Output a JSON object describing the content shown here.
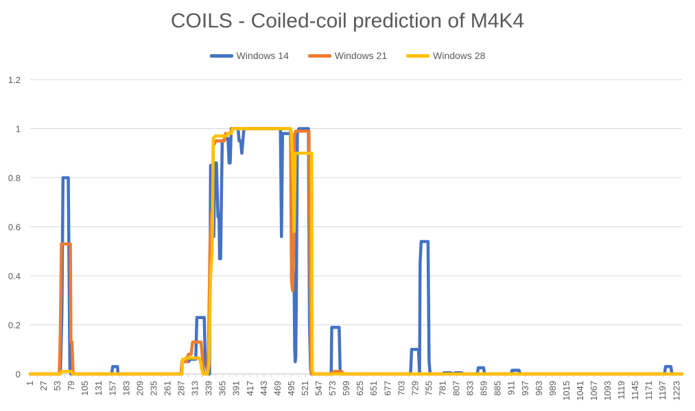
{
  "chart_data": {
    "type": "line",
    "title": "COILS - Coiled-coil prediction of M4K4",
    "xlabel": "",
    "ylabel": "",
    "ylim": [
      0,
      1.2
    ],
    "yticks": [
      "0",
      "0.2",
      "0.4",
      "0.6",
      "0.8",
      "1",
      "1.2"
    ],
    "xlim": [
      1,
      1233
    ],
    "xticks": [
      "1",
      "27",
      "53",
      "79",
      "105",
      "131",
      "157",
      "183",
      "209",
      "235",
      "261",
      "287",
      "313",
      "339",
      "365",
      "391",
      "417",
      "443",
      "469",
      "495",
      "521",
      "547",
      "573",
      "599",
      "625",
      "651",
      "677",
      "703",
      "729",
      "755",
      "781",
      "807",
      "833",
      "859",
      "885",
      "911",
      "937",
      "963",
      "989",
      "1015",
      "1041",
      "1067",
      "1093",
      "1119",
      "1145",
      "1171",
      "1197",
      "1223"
    ],
    "grid": true,
    "legend_position": "top",
    "series": [
      {
        "name": "Windows 14",
        "color": "#4472C4",
        "points": [
          [
            1,
            0
          ],
          [
            58,
            0
          ],
          [
            59,
            0.08
          ],
          [
            61,
            0.25
          ],
          [
            63,
            0.8
          ],
          [
            73,
            0.8
          ],
          [
            74,
            0.55
          ],
          [
            76,
            0.02
          ],
          [
            78,
            0
          ],
          [
            155,
            0
          ],
          [
            157,
            0.03
          ],
          [
            166,
            0.03
          ],
          [
            167,
            0
          ],
          [
            287,
            0
          ],
          [
            289,
            0.05
          ],
          [
            298,
            0.07
          ],
          [
            300,
            0.05
          ],
          [
            304,
            0.06
          ],
          [
            314,
            0.06
          ],
          [
            316,
            0.23
          ],
          [
            330,
            0.23
          ],
          [
            332,
            0.05
          ],
          [
            335,
            0.02
          ],
          [
            338,
            0
          ],
          [
            340,
            0
          ],
          [
            342,
            0.85
          ],
          [
            346,
            0.85
          ],
          [
            348,
            0.56
          ],
          [
            350,
            0.86
          ],
          [
            353,
            0.86
          ],
          [
            356,
            0.64
          ],
          [
            358,
            0.65
          ],
          [
            359,
            0.47
          ],
          [
            361,
            0.47
          ],
          [
            362,
            0.65
          ],
          [
            364,
            0.95
          ],
          [
            372,
            0.96
          ],
          [
            375,
            0.96
          ],
          [
            377,
            0.86
          ],
          [
            379,
            0.86
          ],
          [
            381,
            1
          ],
          [
            394,
            1
          ],
          [
            396,
            0.95
          ],
          [
            399,
            0.95
          ],
          [
            401,
            0.9
          ],
          [
            403,
            0.95
          ],
          [
            405,
            1
          ],
          [
            474,
            1
          ],
          [
            476,
            0.56
          ],
          [
            478,
            0.98
          ],
          [
            495,
            0.98
          ],
          [
            497,
            0.7
          ],
          [
            498,
            0.45
          ],
          [
            499,
            0.37
          ],
          [
            500,
            0.35
          ],
          [
            501,
            0.1
          ],
          [
            502,
            0.05
          ],
          [
            503,
            0.07
          ],
          [
            504,
            0.3
          ],
          [
            506,
            0.98
          ],
          [
            509,
            1
          ],
          [
            527,
            1
          ],
          [
            529,
            0.2
          ],
          [
            531,
            0.02
          ],
          [
            533,
            0
          ],
          [
            570,
            0
          ],
          [
            571,
            0.19
          ],
          [
            585,
            0.19
          ],
          [
            587,
            0
          ],
          [
            720,
            0
          ],
          [
            722,
            0.1
          ],
          [
            735,
            0.1
          ],
          [
            737,
            0
          ],
          [
            738,
            0.45
          ],
          [
            740,
            0.54
          ],
          [
            753,
            0.54
          ],
          [
            755,
            0.05
          ],
          [
            757,
            0
          ],
          [
            782,
            0
          ],
          [
            783,
            0.005
          ],
          [
            796,
            0.005
          ],
          [
            800,
            0
          ],
          [
            805,
            0.005
          ],
          [
            816,
            0.005
          ],
          [
            820,
            0
          ],
          [
            846,
            0
          ],
          [
            848,
            0.025
          ],
          [
            858,
            0.025
          ],
          [
            860,
            0
          ],
          [
            910,
            0
          ],
          [
            912,
            0.015
          ],
          [
            925,
            0.015
          ],
          [
            927,
            0
          ],
          [
            1200,
            0
          ],
          [
            1202,
            0.03
          ],
          [
            1212,
            0.03
          ],
          [
            1214,
            0
          ],
          [
            1233,
            0
          ]
        ]
      },
      {
        "name": "Windows 21",
        "color": "#ED7D31",
        "points": [
          [
            1,
            0
          ],
          [
            56,
            0
          ],
          [
            58,
            0.17
          ],
          [
            60,
            0.53
          ],
          [
            77,
            0.53
          ],
          [
            78,
            0.13
          ],
          [
            80,
            0.13
          ],
          [
            82,
            0
          ],
          [
            286,
            0
          ],
          [
            288,
            0.05
          ],
          [
            297,
            0.05
          ],
          [
            300,
            0.08
          ],
          [
            305,
            0.08
          ],
          [
            308,
            0.13
          ],
          [
            324,
            0.13
          ],
          [
            326,
            0.08
          ],
          [
            328,
            0.02
          ],
          [
            330,
            0
          ],
          [
            336,
            0
          ],
          [
            338,
            0.1
          ],
          [
            341,
            0.54
          ],
          [
            344,
            0.66
          ],
          [
            345,
            0.55
          ],
          [
            347,
            0.93
          ],
          [
            352,
            0.95
          ],
          [
            368,
            0.95
          ],
          [
            370,
            0.98
          ],
          [
            380,
            0.98
          ],
          [
            382,
            1
          ],
          [
            493,
            1
          ],
          [
            495,
            0.38
          ],
          [
            497,
            0.34
          ],
          [
            499,
            0.5
          ],
          [
            500,
            0.97
          ],
          [
            503,
            0.99
          ],
          [
            528,
            0.99
          ],
          [
            530,
            0.45
          ],
          [
            532,
            0
          ],
          [
            572,
            0
          ],
          [
            574,
            0.01
          ],
          [
            590,
            0.01
          ],
          [
            592,
            0
          ],
          [
            1233,
            0
          ]
        ]
      },
      {
        "name": "Windows 28",
        "color": "#FFC000",
        "points": [
          [
            1,
            0
          ],
          [
            58,
            0
          ],
          [
            60,
            0.01
          ],
          [
            79,
            0.01
          ],
          [
            81,
            0
          ],
          [
            288,
            0
          ],
          [
            289,
            0.06
          ],
          [
            292,
            0.06
          ],
          [
            295,
            0.065
          ],
          [
            320,
            0.065
          ],
          [
            323,
            0.05
          ],
          [
            325,
            0.02
          ],
          [
            328,
            0
          ],
          [
            336,
            0
          ],
          [
            339,
            0.04
          ],
          [
            342,
            0.4
          ],
          [
            345,
            0.5
          ],
          [
            347,
            0.96
          ],
          [
            351,
            0.97
          ],
          [
            372,
            0.97
          ],
          [
            374,
            0.98
          ],
          [
            381,
            0.98
          ],
          [
            384,
            1
          ],
          [
            493,
            1
          ],
          [
            495,
            0.98
          ],
          [
            498,
            0.8
          ],
          [
            500,
            0.58
          ],
          [
            502,
            0.9
          ],
          [
            533,
            0.9
          ],
          [
            534,
            0.02
          ],
          [
            536,
            0
          ],
          [
            1233,
            0
          ]
        ]
      }
    ]
  }
}
